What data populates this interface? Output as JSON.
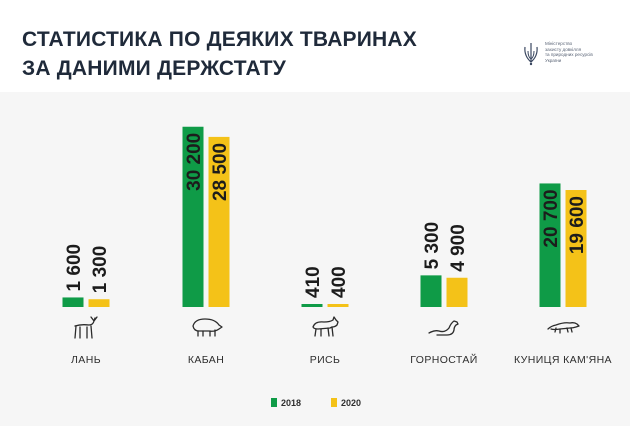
{
  "header": {
    "title_line1": "СТАТИСТИКА ПО ДЕЯКИХ ТВАРИНАХ",
    "title_line2": "ЗА ДАНИМИ ДЕРЖСТАТУ"
  },
  "logo": {
    "line1": "Міністерство",
    "line2": "захисту довкілля",
    "line3": "та природних ресурсів",
    "line4": "України"
  },
  "colors": {
    "series_2018": "#0f9b47",
    "series_2020": "#f4c218",
    "title": "#1f2a3a",
    "panel": "#f6f6f6"
  },
  "chart_data": {
    "type": "bar",
    "title": "",
    "xlabel": "",
    "ylabel": "",
    "ylim": [
      0,
      32000
    ],
    "grid": false,
    "legend": "bottom-center",
    "categories": [
      "ЛАНЬ",
      "КАБАН",
      "РИСЬ",
      "ГОРНОСТАЙ",
      "КУНИЦЯ КАМ'ЯНА"
    ],
    "icons": [
      "deer-icon",
      "boar-icon",
      "lynx-icon",
      "ermine-icon",
      "marten-icon"
    ],
    "series": [
      {
        "name": "2018",
        "values": [
          1600,
          30200,
          410,
          5300,
          20700
        ],
        "labels": [
          "1 600",
          "30 200",
          "410",
          "5 300",
          "20 700"
        ]
      },
      {
        "name": "2020",
        "values": [
          1300,
          28500,
          400,
          4900,
          19600
        ],
        "labels": [
          "1 300",
          "28 500",
          "400",
          "4 900",
          "19 600"
        ]
      }
    ]
  }
}
